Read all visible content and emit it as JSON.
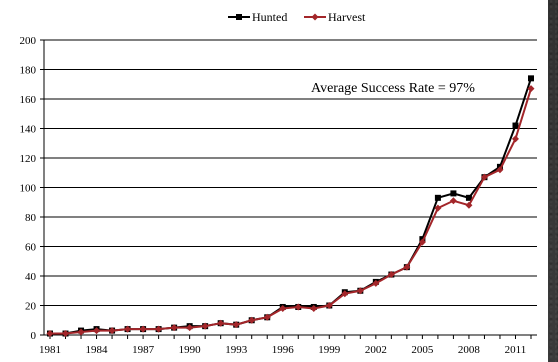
{
  "chart_data": {
    "type": "line",
    "title": "",
    "xlabel": "",
    "ylabel": "",
    "ylim": [
      0,
      200
    ],
    "xlim": [
      1981,
      2012
    ],
    "y_ticks": [
      "0",
      "20",
      "40",
      "60",
      "80",
      "100",
      "120",
      "140",
      "160",
      "180",
      "200"
    ],
    "x_ticks": [
      "1981",
      "1984",
      "1987",
      "1990",
      "1993",
      "1996",
      "1999",
      "2002",
      "2005",
      "2008",
      "2011"
    ],
    "grid": "horizontal",
    "legend_position": "top-center",
    "annotation": "Average Success Rate = 97%",
    "x": [
      1981,
      1982,
      1983,
      1984,
      1985,
      1986,
      1987,
      1988,
      1989,
      1990,
      1991,
      1992,
      1993,
      1994,
      1995,
      1996,
      1997,
      1998,
      1999,
      2000,
      2001,
      2002,
      2003,
      2004,
      2005,
      2006,
      2007,
      2008,
      2009,
      2010,
      2011,
      2012
    ],
    "series": [
      {
        "name": "Hunted",
        "color": "#000000",
        "marker": "square",
        "values": [
          1,
          1,
          3,
          4,
          3,
          4,
          4,
          4,
          5,
          6,
          6,
          8,
          7,
          10,
          12,
          19,
          19,
          19,
          20,
          29,
          30,
          36,
          41,
          46,
          65,
          93,
          96,
          93,
          107,
          114,
          142,
          174
        ]
      },
      {
        "name": "Harvest",
        "color": "#a3262a",
        "marker": "diamond",
        "values": [
          1,
          1,
          2,
          3,
          3,
          4,
          4,
          4,
          5,
          5,
          6,
          8,
          7,
          10,
          12,
          18,
          19,
          18,
          20,
          28,
          30,
          35,
          41,
          46,
          63,
          86,
          91,
          88,
          107,
          112,
          133,
          167
        ]
      }
    ]
  }
}
